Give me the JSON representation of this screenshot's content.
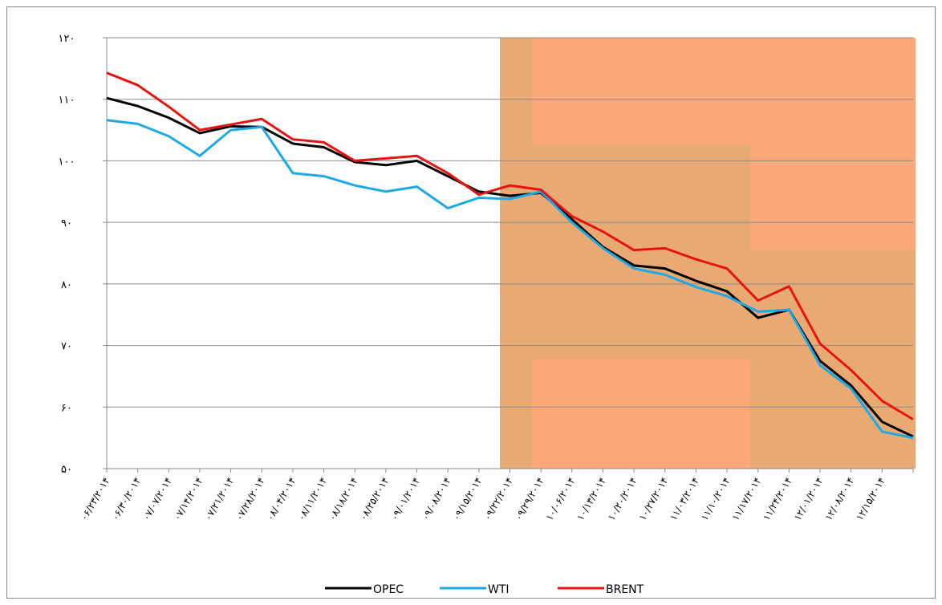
{
  "chart_data": {
    "type": "line",
    "categories": [
      "۰۶/۲۳/۲۰۱۴",
      "۰۶/۳۰/۲۰۱۴",
      "۰۷/۰۷/۲۰۱۴",
      "۰۷/۱۴/۲۰۱۴",
      "۰۷/۲۱/۲۰۱۴",
      "۰۷/۲۸/۲۰۱۴",
      "۰۸/۰۴/۲۰۱۴",
      "۰۸/۱۱/۲۰۱۴",
      "۰۸/۱۸/۲۰۱۴",
      "۰۸/۲۵/۲۰۱۴",
      "۰۹/۰۱/۲۰۱۴",
      "۰۹/۰۸/۲۰۱۴",
      "۰۹/۱۵/۲۰۱۴",
      "۰۹/۲۲/۲۰۱۴",
      "۰۹/۲۹/۲۰۱۴",
      "۱۰/۰۶/۲۰۱۴",
      "۱۰/۱۳/۲۰۱۴",
      "۱۰/۲۰/۲۰۱۴",
      "۱۰/۲۷/۲۰۱۴",
      "۱۱/۰۳/۲۰۱۴",
      "۱۱/۱۰/۲۰۱۴",
      "۱۱/۱۷/۲۰۱۴",
      "۱۱/۲۴/۲۰۱۴",
      "۱۲/۰۱/۲۰۱۴",
      "۱۲/۰۸/۲۰۱۴",
      "۱۲/۱۵/۲۰۱۴",
      null
    ],
    "series": [
      {
        "name": "OPEC",
        "color": "#000000",
        "values": [
          110.2,
          108.9,
          107.0,
          104.5,
          105.6,
          105.5,
          102.8,
          102.2,
          99.8,
          99.3,
          100.0,
          97.5,
          95.0,
          94.3,
          94.8,
          90.5,
          86.0,
          83.0,
          82.5,
          80.5,
          78.8,
          74.5,
          75.8,
          67.5,
          63.5,
          57.6,
          55.2
        ]
      },
      {
        "name": "WTI",
        "color": "#1da9e6",
        "values": [
          106.6,
          106.0,
          104.0,
          100.8,
          105.0,
          105.5,
          98.0,
          97.5,
          96.0,
          95.0,
          95.8,
          92.3,
          94.0,
          93.8,
          95.0,
          90.0,
          85.8,
          82.5,
          81.5,
          79.5,
          78.0,
          75.5,
          75.8,
          66.8,
          63.0,
          56.0,
          55.0
        ]
      },
      {
        "name": "BRENT",
        "color": "#e8120f",
        "values": [
          114.3,
          112.3,
          108.8,
          105.0,
          105.9,
          106.8,
          103.5,
          103.0,
          100.0,
          100.4,
          100.8,
          98.0,
          94.5,
          96.0,
          95.3,
          91.0,
          88.5,
          85.5,
          85.8,
          84.0,
          82.5,
          77.3,
          79.6,
          70.3,
          66.0,
          61.0,
          58.0
        ]
      }
    ],
    "ylim": [
      50,
      120
    ],
    "yticks": [
      {
        "value": 50,
        "label": "۵۰"
      },
      {
        "value": 60,
        "label": "۶۰"
      },
      {
        "value": 70,
        "label": "۷۰"
      },
      {
        "value": 80,
        "label": "۸۰"
      },
      {
        "value": 90,
        "label": "۹۰"
      },
      {
        "value": 100,
        "label": "۱۰۰"
      },
      {
        "value": 110,
        "label": "۱۱۰"
      },
      {
        "value": 120,
        "label": "۱۲۰"
      }
    ],
    "grid": true,
    "legend": "bottom"
  }
}
